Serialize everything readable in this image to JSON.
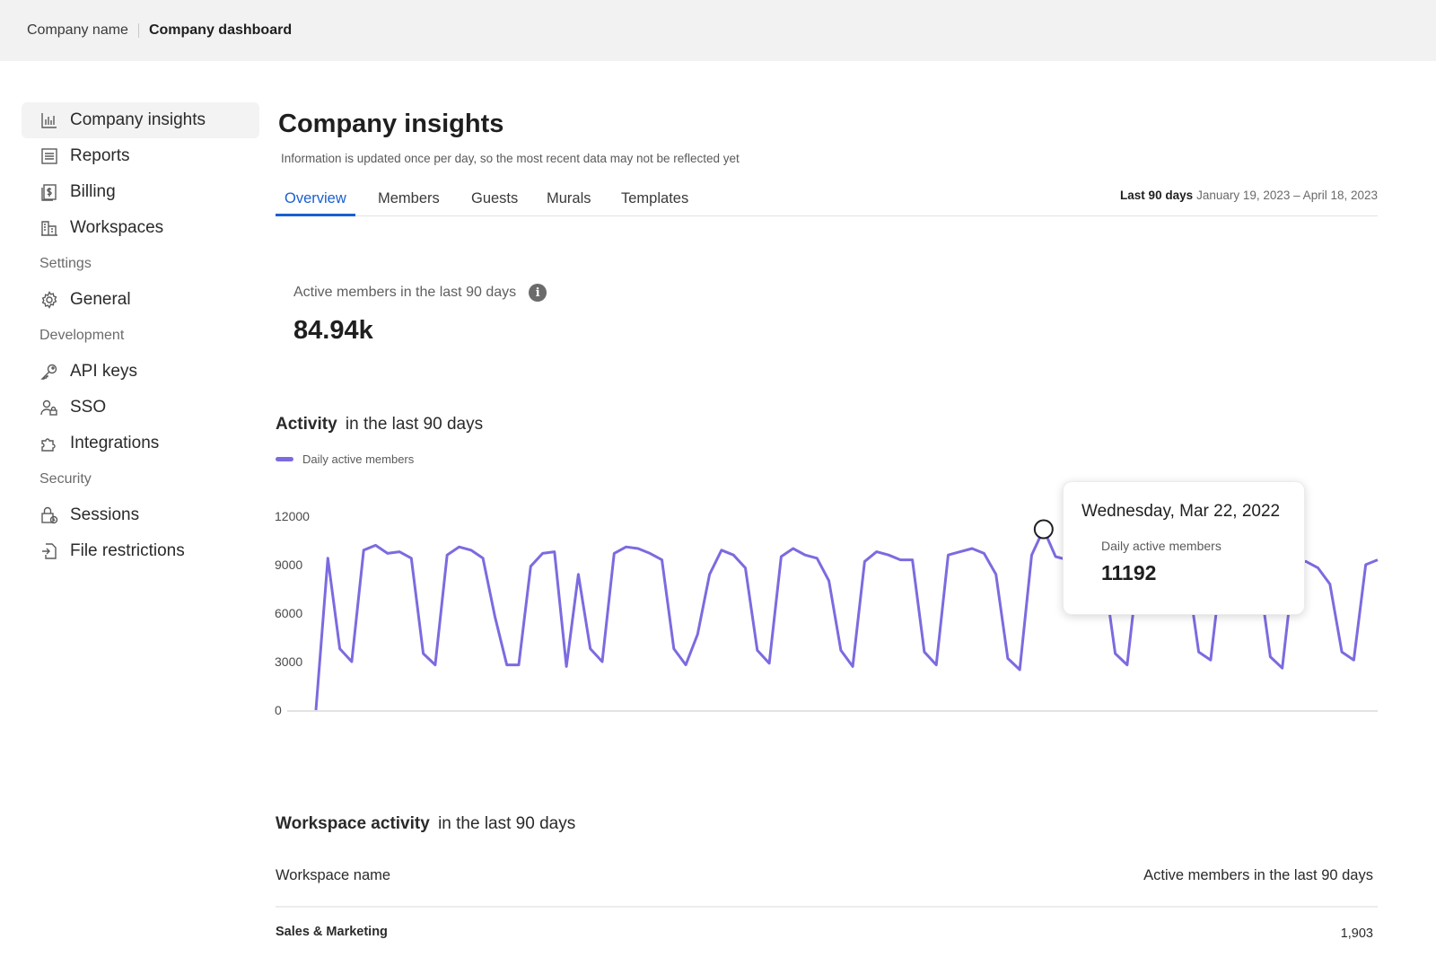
{
  "topbar": {
    "company": "Company name",
    "dashboard": "Company dashboard"
  },
  "sidebar": {
    "items": [
      {
        "label": "Company insights",
        "icon": "bar-chart-icon",
        "active": true
      },
      {
        "label": "Reports",
        "icon": "list-icon"
      },
      {
        "label": "Billing",
        "icon": "invoice-icon"
      },
      {
        "label": "Workspaces",
        "icon": "building-icon"
      }
    ],
    "settings_label": "Settings",
    "settings_items": [
      {
        "label": "General",
        "icon": "gear-icon"
      }
    ],
    "development_label": "Development",
    "development_items": [
      {
        "label": "API keys",
        "icon": "key-icon"
      },
      {
        "label": "SSO",
        "icon": "user-lock-icon"
      },
      {
        "label": "Integrations",
        "icon": "puzzle-icon"
      }
    ],
    "security_label": "Security",
    "security_items": [
      {
        "label": "Sessions",
        "icon": "lock-clock-icon"
      },
      {
        "label": "File restrictions",
        "icon": "file-restrict-icon"
      }
    ]
  },
  "main": {
    "title": "Company insights",
    "subtitle": "Information is updated once per day, so the most recent data may not be reflected yet",
    "tabs": [
      {
        "label": "Overview",
        "active": true
      },
      {
        "label": "Members"
      },
      {
        "label": "Guests"
      },
      {
        "label": "Murals"
      },
      {
        "label": "Templates"
      }
    ],
    "range_label": "Last 90 days",
    "range_value": "January 19, 2023 –  April 18, 2023",
    "metric": {
      "label": "Active members in the last 90 days",
      "value": "84.94k"
    },
    "activity": {
      "title_bold": "Activity",
      "title_rest": "in the last 90 days"
    },
    "tooltip": {
      "date": "Wednesday, Mar 22, 2022",
      "label": "Daily active members",
      "value": "11192"
    },
    "workspace": {
      "title_bold": "Workspace activity",
      "title_rest": "in the last 90 days",
      "col1": "Workspace name",
      "col2": "Active members in the last 90 days",
      "rows": [
        {
          "name": "Sales & Marketing",
          "value": "1,903"
        }
      ]
    }
  },
  "colors": {
    "accent": "#1a5fd0",
    "series": "#7b6be0"
  },
  "chart_data": {
    "type": "line",
    "ylim": [
      0,
      12000
    ],
    "yticks": [
      "12000",
      "9000",
      "6000",
      "3000",
      "0"
    ],
    "series": [
      {
        "name": "Daily active members",
        "values": [
          0,
          9400,
          3800,
          3000,
          9900,
          10200,
          9700,
          9800,
          9400,
          3500,
          2800,
          9600,
          10100,
          9900,
          9400,
          5800,
          2800,
          2800,
          8900,
          9700,
          9800,
          2700,
          8400,
          3800,
          3000,
          9700,
          10100,
          10000,
          9700,
          9300,
          3800,
          2800,
          4700,
          8400,
          9900,
          9600,
          8800,
          3700,
          2900,
          9500,
          10000,
          9600,
          9400,
          8000,
          3700,
          2700,
          9200,
          9800,
          9600,
          9300,
          9300,
          3600,
          2800,
          9600,
          9800,
          10000,
          9700,
          8400,
          3200,
          2500,
          9600,
          11192,
          9500,
          9300,
          9400,
          9300,
          8800,
          3500,
          2800,
          9300,
          9500,
          9400,
          9300,
          8800,
          3600,
          3100,
          9400,
          9400,
          9600,
          8700,
          3300,
          2600,
          9100,
          9200,
          8800,
          7800,
          3600,
          3100,
          9000,
          9300
        ]
      }
    ],
    "highlight": {
      "index": 61,
      "value": 11192
    }
  }
}
